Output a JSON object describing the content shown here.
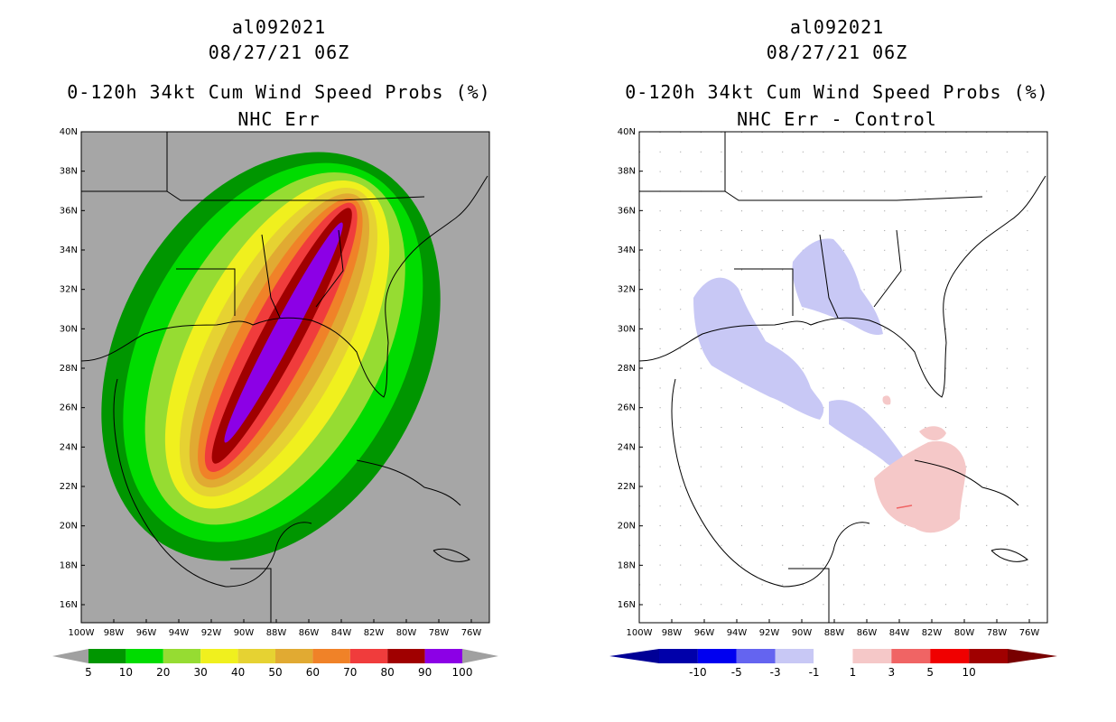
{
  "left_panel": {
    "title_storm": "al092021",
    "title_time": "08/27/21 06Z",
    "title_product": "0-120h 34kt Cum Wind Speed Probs (%)",
    "title_sub": "NHC Err",
    "lat_labels": [
      "40N",
      "38N",
      "36N",
      "34N",
      "32N",
      "30N",
      "28N",
      "26N",
      "24N",
      "22N",
      "20N",
      "18N",
      "16N"
    ],
    "lon_labels": [
      "100W",
      "98W",
      "96W",
      "94W",
      "92W",
      "90W",
      "88W",
      "86W",
      "84W",
      "82W",
      "80W",
      "78W",
      "76W"
    ],
    "colorbar": {
      "labels": [
        "5",
        "10",
        "20",
        "30",
        "40",
        "50",
        "60",
        "70",
        "80",
        "90",
        "100"
      ],
      "colors": [
        "#009600",
        "#00dc00",
        "#96dc32",
        "#f0f01e",
        "#e6d232",
        "#e1aa32",
        "#f08228",
        "#f03c3c",
        "#a00000",
        "#8c00e6"
      ],
      "end_color": "#a0a0a0"
    },
    "land_color": "#a6a6a6"
  },
  "right_panel": {
    "title_storm": "al092021",
    "title_time": "08/27/21 06Z",
    "title_product": "0-120h 34kt Cum Wind Speed Probs (%)",
    "title_sub": "NHC Err - Control",
    "lat_labels": [
      "40N",
      "38N",
      "36N",
      "34N",
      "32N",
      "30N",
      "28N",
      "26N",
      "24N",
      "22N",
      "20N",
      "18N",
      "16N"
    ],
    "lon_labels": [
      "100W",
      "98W",
      "96W",
      "94W",
      "92W",
      "90W",
      "88W",
      "86W",
      "84W",
      "82W",
      "80W",
      "78W",
      "76W"
    ],
    "colorbar": {
      "labels": [
        "-10",
        "-5",
        "-3",
        "-1",
        "1",
        "3",
        "5",
        "10"
      ],
      "colors": [
        "#0000aa",
        "#0000f0",
        "#6464f0",
        "#c8c8f5",
        "#ffffff",
        "#f5c8c8",
        "#f06464",
        "#f00000",
        "#a00000"
      ],
      "end_low": "#000096",
      "end_high": "#780000"
    }
  }
}
